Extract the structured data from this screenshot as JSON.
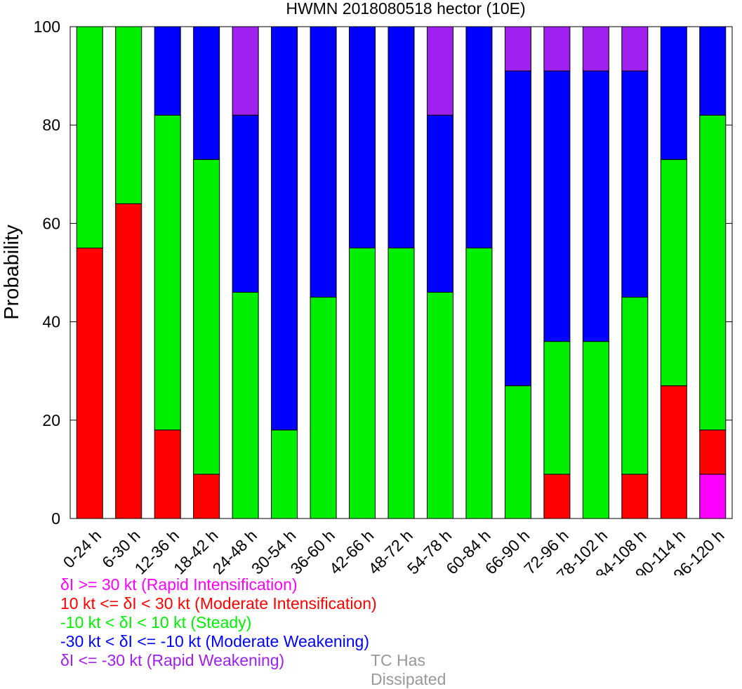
{
  "chart_data": {
    "type": "bar",
    "stacked": true,
    "title": "HWMN 2018080518 hector (10E)",
    "ylabel": "Probability",
    "xlabel": "",
    "ylim": [
      0,
      100
    ],
    "yticks": [
      0,
      20,
      40,
      60,
      80,
      100
    ],
    "grid": false,
    "categories": [
      "0-24 h",
      "6-30 h",
      "12-36 h",
      "18-42 h",
      "24-48 h",
      "30-54 h",
      "36-60 h",
      "42-66 h",
      "48-72 h",
      "54-78 h",
      "60-84 h",
      "66-90 h",
      "72-96 h",
      "78-102 h",
      "84-108 h",
      "90-114 h",
      "96-120 h"
    ],
    "series": [
      {
        "name": "Rapid Intensification",
        "color": "#ff00ff",
        "values": [
          0,
          0,
          0,
          0,
          0,
          0,
          0,
          0,
          0,
          0,
          0,
          0,
          0,
          0,
          0,
          0,
          9
        ]
      },
      {
        "name": "Moderate Intensification",
        "color": "#ff0000",
        "values": [
          55,
          64,
          18,
          9,
          0,
          0,
          0,
          0,
          0,
          0,
          0,
          0,
          9,
          0,
          9,
          27,
          9
        ]
      },
      {
        "name": "Steady",
        "color": "#00ee00",
        "values": [
          45,
          36,
          64,
          64,
          46,
          18,
          45,
          55,
          55,
          46,
          55,
          27,
          27,
          36,
          36,
          46,
          64
        ]
      },
      {
        "name": "Moderate Weakening",
        "color": "#0000ff",
        "values": [
          0,
          0,
          18,
          27,
          36,
          82,
          55,
          45,
          45,
          36,
          45,
          64,
          55,
          55,
          46,
          27,
          18
        ]
      },
      {
        "name": "Rapid Weakening",
        "color": "#a020f0",
        "values": [
          0,
          0,
          0,
          0,
          18,
          0,
          0,
          0,
          0,
          18,
          0,
          9,
          9,
          9,
          9,
          0,
          0
        ]
      }
    ],
    "legend_placement": "bottom-left"
  },
  "legend": [
    {
      "text": "δI >= 30 kt (Rapid Intensification)",
      "color": "#ff00ff"
    },
    {
      "text": "10 kt <= δI < 30 kt (Moderate Intensification)",
      "color": "#ff0000"
    },
    {
      "text": "-10 kt < δI < 10 kt (Steady)",
      "color": "#00ee00"
    },
    {
      "text": "-30 kt < δI <= -10 kt (Moderate Weakening)",
      "color": "#0000ff"
    },
    {
      "text": "δI <= -30 kt (Rapid Weakening)",
      "color": "#a020f0"
    }
  ],
  "dissipated_label": {
    "text": "TC Has Dissipated",
    "color": "#999999"
  }
}
